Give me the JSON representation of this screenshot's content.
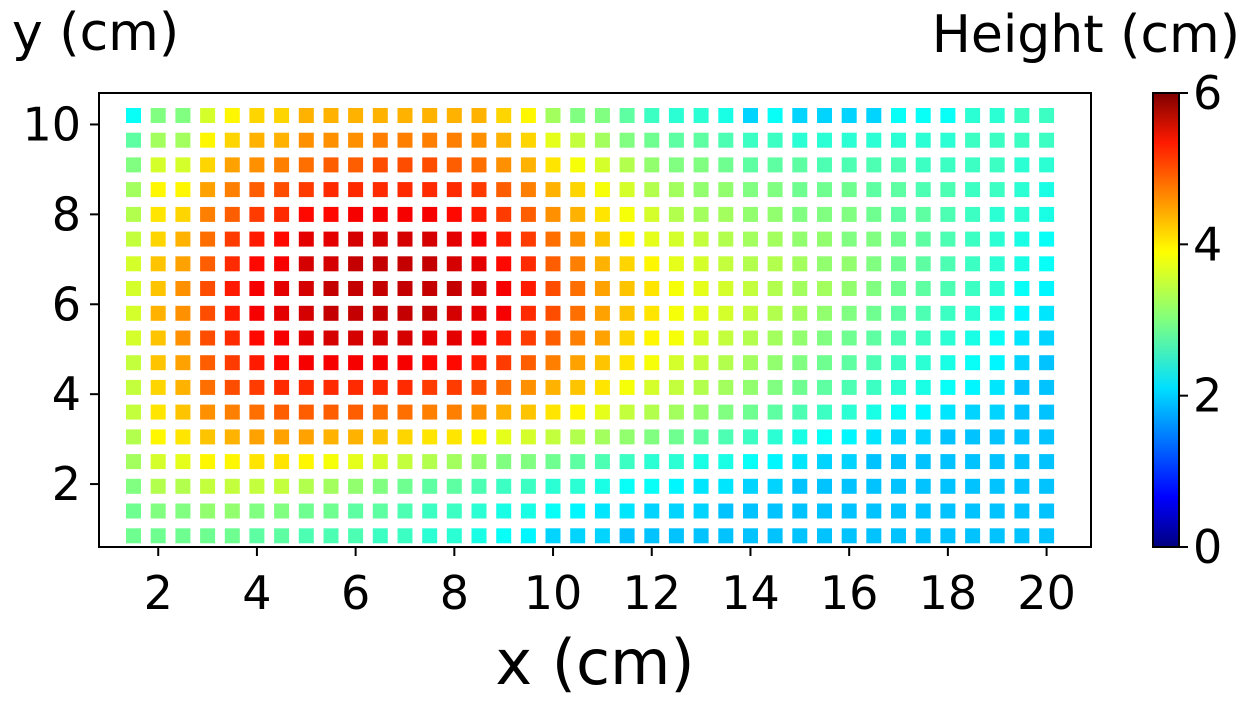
{
  "chart_data": {
    "type": "heatmap",
    "marker": "square",
    "xlabel": "x (cm)",
    "ylabel": "y (cm)",
    "xlim": [
      0.8,
      20.9
    ],
    "ylim": [
      0.6,
      10.7
    ],
    "xticks": [
      2,
      4,
      6,
      8,
      10,
      12,
      14,
      16,
      18,
      20
    ],
    "yticks": [
      2,
      4,
      6,
      8,
      10
    ],
    "x": [
      1.5,
      2.0,
      2.5,
      3.0,
      3.5,
      4.0,
      4.5,
      5.0,
      5.5,
      6.0,
      6.5,
      7.0,
      7.5,
      8.0,
      8.5,
      9.0,
      9.5,
      10.0,
      10.5,
      11.0,
      11.5,
      12.0,
      12.5,
      13.0,
      13.5,
      14.0,
      14.5,
      15.0,
      15.5,
      16.0,
      16.5,
      17.0,
      17.5,
      18.0,
      18.5,
      19.0,
      19.5,
      20.0
    ],
    "y": [
      10.2,
      9.65,
      9.1,
      8.55,
      8.0,
      7.45,
      6.9,
      6.35,
      5.8,
      5.25,
      4.7,
      4.15,
      3.6,
      3.05,
      2.5,
      1.95,
      1.4,
      0.85
    ],
    "z": [
      [
        2.3,
        3.0,
        3.0,
        3.5,
        3.8,
        4.0,
        4.0,
        4.2,
        4.2,
        4.2,
        4.2,
        4.2,
        4.2,
        4.2,
        4.2,
        4.0,
        3.8,
        3.2,
        3.0,
        3.0,
        2.8,
        2.6,
        2.5,
        2.5,
        2.4,
        2.0,
        2.3,
        2.0,
        2.0,
        2.0,
        2.0,
        2.3,
        2.3,
        2.3,
        2.5,
        2.5,
        2.6,
        2.6
      ],
      [
        2.8,
        3.2,
        3.2,
        3.8,
        4.0,
        4.2,
        4.2,
        4.4,
        4.4,
        4.4,
        4.5,
        4.5,
        4.5,
        4.5,
        4.4,
        4.2,
        4.0,
        3.6,
        3.4,
        3.2,
        3.0,
        2.9,
        2.8,
        2.8,
        2.7,
        2.6,
        2.6,
        2.5,
        2.5,
        2.5,
        2.5,
        2.5,
        2.5,
        2.5,
        2.6,
        2.6,
        2.6,
        2.6
      ],
      [
        3.0,
        3.5,
        3.5,
        4.0,
        4.3,
        4.4,
        4.5,
        4.6,
        4.7,
        4.7,
        4.8,
        4.8,
        4.8,
        4.7,
        4.6,
        4.4,
        4.2,
        3.9,
        3.7,
        3.5,
        3.3,
        3.1,
        3.0,
        3.0,
        2.9,
        2.8,
        2.8,
        2.8,
        2.7,
        2.7,
        2.7,
        2.7,
        2.6,
        2.6,
        2.6,
        2.6,
        2.5,
        2.5
      ],
      [
        3.2,
        3.8,
        3.8,
        4.3,
        4.5,
        4.7,
        4.8,
        4.9,
        5.0,
        5.0,
        5.0,
        5.0,
        5.0,
        5.0,
        4.9,
        4.7,
        4.5,
        4.2,
        4.0,
        3.7,
        3.5,
        3.3,
        3.2,
        3.1,
        3.1,
        3.0,
        3.0,
        2.9,
        2.9,
        2.9,
        2.8,
        2.8,
        2.7,
        2.7,
        2.6,
        2.6,
        2.5,
        2.4
      ],
      [
        3.3,
        3.9,
        4.0,
        4.5,
        4.7,
        4.9,
        5.0,
        5.2,
        5.2,
        5.3,
        5.3,
        5.3,
        5.3,
        5.2,
        5.1,
        4.9,
        4.7,
        4.4,
        4.2,
        3.9,
        3.7,
        3.5,
        3.3,
        3.2,
        3.2,
        3.1,
        3.1,
        3.0,
        3.0,
        3.0,
        2.9,
        2.8,
        2.8,
        2.7,
        2.6,
        2.5,
        2.5,
        2.4
      ],
      [
        3.4,
        4.0,
        4.2,
        4.6,
        4.9,
        5.1,
        5.2,
        5.4,
        5.4,
        5.5,
        5.5,
        5.5,
        5.5,
        5.4,
        5.3,
        5.1,
        4.9,
        4.6,
        4.4,
        4.1,
        3.8,
        3.6,
        3.5,
        3.4,
        3.3,
        3.2,
        3.2,
        3.1,
        3.1,
        3.0,
        3.0,
        2.9,
        2.8,
        2.7,
        2.6,
        2.5,
        2.4,
        2.3
      ],
      [
        3.5,
        4.1,
        4.3,
        4.7,
        5.0,
        5.2,
        5.3,
        5.5,
        5.5,
        5.6,
        5.6,
        5.6,
        5.6,
        5.5,
        5.4,
        5.2,
        5.0,
        4.7,
        4.5,
        4.2,
        4.0,
        3.8,
        3.6,
        3.5,
        3.4,
        3.3,
        3.3,
        3.2,
        3.1,
        3.1,
        3.0,
        2.9,
        2.8,
        2.7,
        2.6,
        2.5,
        2.4,
        2.3
      ],
      [
        3.5,
        4.1,
        4.4,
        4.8,
        5.1,
        5.3,
        5.4,
        5.5,
        5.6,
        5.6,
        5.6,
        5.6,
        5.6,
        5.6,
        5.5,
        5.3,
        5.1,
        4.8,
        4.6,
        4.3,
        4.1,
        3.9,
        3.7,
        3.6,
        3.5,
        3.4,
        3.3,
        3.2,
        3.2,
        3.1,
        3.0,
        2.9,
        2.8,
        2.7,
        2.6,
        2.5,
        2.3,
        2.2
      ],
      [
        3.5,
        4.2,
        4.4,
        4.8,
        5.1,
        5.3,
        5.4,
        5.5,
        5.6,
        5.6,
        5.6,
        5.6,
        5.6,
        5.5,
        5.4,
        5.3,
        5.0,
        4.8,
        4.6,
        4.3,
        4.1,
        3.9,
        3.7,
        3.6,
        3.5,
        3.4,
        3.3,
        3.2,
        3.1,
        3.0,
        2.9,
        2.8,
        2.7,
        2.6,
        2.5,
        2.4,
        2.2,
        2.1
      ],
      [
        3.5,
        4.1,
        4.4,
        4.8,
        5.0,
        5.2,
        5.3,
        5.4,
        5.5,
        5.5,
        5.5,
        5.5,
        5.4,
        5.4,
        5.3,
        5.1,
        4.9,
        4.7,
        4.5,
        4.3,
        4.0,
        3.8,
        3.7,
        3.5,
        3.4,
        3.3,
        3.2,
        3.1,
        3.0,
        2.9,
        2.8,
        2.7,
        2.6,
        2.5,
        2.4,
        2.3,
        2.1,
        2.0
      ],
      [
        3.4,
        4.1,
        4.3,
        4.7,
        4.9,
        5.1,
        5.2,
        5.3,
        5.3,
        5.3,
        5.3,
        5.3,
        5.2,
        5.2,
        5.1,
        4.9,
        4.7,
        4.5,
        4.3,
        4.1,
        3.9,
        3.7,
        3.5,
        3.4,
        3.3,
        3.2,
        3.1,
        3.0,
        2.9,
        2.8,
        2.7,
        2.6,
        2.5,
        2.4,
        2.3,
        2.2,
        2.0,
        1.9
      ],
      [
        3.4,
        4.0,
        4.2,
        4.6,
        4.8,
        4.9,
        5.0,
        5.0,
        5.0,
        5.0,
        5.0,
        5.0,
        4.9,
        4.9,
        4.8,
        4.6,
        4.4,
        4.2,
        4.1,
        3.9,
        3.7,
        3.5,
        3.4,
        3.3,
        3.2,
        3.1,
        3.0,
        2.9,
        2.8,
        2.7,
        2.6,
        2.5,
        2.4,
        2.3,
        2.2,
        2.1,
        1.9,
        1.9
      ],
      [
        3.4,
        3.9,
        4.1,
        4.4,
        4.5,
        4.6,
        4.7,
        4.7,
        4.7,
        4.7,
        4.6,
        4.6,
        4.5,
        4.5,
        4.4,
        4.2,
        4.1,
        3.9,
        3.8,
        3.6,
        3.4,
        3.3,
        3.2,
        3.1,
        3.0,
        2.9,
        2.8,
        2.7,
        2.6,
        2.5,
        2.4,
        2.3,
        2.2,
        2.1,
        2.0,
        2.0,
        1.9,
        1.9
      ],
      [
        3.3,
        3.8,
        3.9,
        4.1,
        4.2,
        4.3,
        4.3,
        4.3,
        4.2,
        4.2,
        4.1,
        4.0,
        3.9,
        3.9,
        3.8,
        3.6,
        3.5,
        3.4,
        3.3,
        3.2,
        3.1,
        3.0,
        2.9,
        2.8,
        2.7,
        2.6,
        2.5,
        2.4,
        2.3,
        2.2,
        2.1,
        2.0,
        2.0,
        1.9,
        1.9,
        1.9,
        1.9,
        1.9
      ],
      [
        3.2,
        3.5,
        3.6,
        3.8,
        3.8,
        3.9,
        3.9,
        3.8,
        3.7,
        3.6,
        3.5,
        3.4,
        3.3,
        3.2,
        3.1,
        3.0,
        3.0,
        2.9,
        2.8,
        2.7,
        2.6,
        2.5,
        2.5,
        2.4,
        2.4,
        2.3,
        2.2,
        2.1,
        2.0,
        2.0,
        1.9,
        1.9,
        1.9,
        1.9,
        1.9,
        1.9,
        1.9,
        1.9
      ],
      [
        3.0,
        3.3,
        3.3,
        3.4,
        3.4,
        3.4,
        3.4,
        3.3,
        3.2,
        3.1,
        3.0,
        2.9,
        2.8,
        2.8,
        2.7,
        2.6,
        2.6,
        2.5,
        2.5,
        2.4,
        2.3,
        2.3,
        2.2,
        2.1,
        2.1,
        2.0,
        2.0,
        1.9,
        1.9,
        1.9,
        1.9,
        1.9,
        1.9,
        1.9,
        1.9,
        1.9,
        1.9,
        1.9
      ],
      [
        2.9,
        3.0,
        3.0,
        3.1,
        3.1,
        3.0,
        3.0,
        2.9,
        2.9,
        2.8,
        2.8,
        2.7,
        2.6,
        2.6,
        2.5,
        2.4,
        2.4,
        2.3,
        2.2,
        2.1,
        2.1,
        2.0,
        2.0,
        2.0,
        1.9,
        1.9,
        1.9,
        1.9,
        1.9,
        1.9,
        1.9,
        1.9,
        1.9,
        1.9,
        1.9,
        1.9,
        1.9,
        1.9
      ],
      [
        2.9,
        2.9,
        2.9,
        2.9,
        2.9,
        2.8,
        2.8,
        2.7,
        2.7,
        2.7,
        2.6,
        2.6,
        2.5,
        2.5,
        2.4,
        2.3,
        2.2,
        2.0,
        2.0,
        2.0,
        1.9,
        1.9,
        1.9,
        1.9,
        1.9,
        1.9,
        1.9,
        1.9,
        1.9,
        1.9,
        1.9,
        1.9,
        1.9,
        1.9,
        1.9,
        1.9,
        1.9,
        1.9
      ]
    ],
    "colorbar": {
      "label": "Height (cm)",
      "min": 0,
      "max": 6,
      "ticks": [
        0,
        2,
        4,
        6
      ],
      "colormap": "jet"
    },
    "grid": false,
    "legend": "none"
  }
}
